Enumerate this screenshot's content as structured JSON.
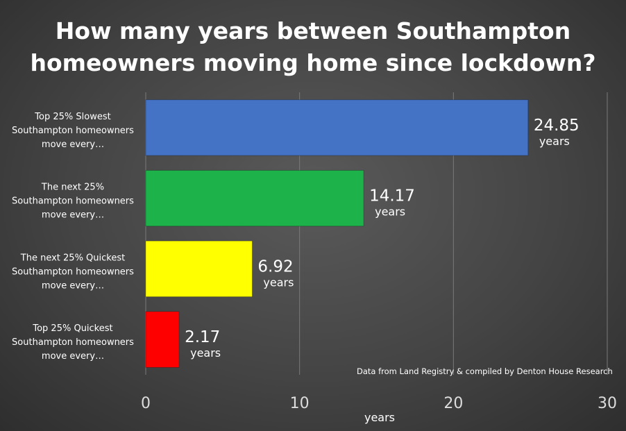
{
  "title_lines": [
    "How many years between Southampton",
    "homeowners moving home since lockdown?"
  ],
  "source_note": "Data from Land Registry & compiled by Denton House Research",
  "chart_data": {
    "type": "bar",
    "orientation": "horizontal",
    "title": "How many years between Southampton homeowners moving home since lockdown?",
    "xlabel": "years",
    "ylabel": "",
    "xlim": [
      0,
      30
    ],
    "ticks": [
      0,
      10,
      20,
      30
    ],
    "grid": true,
    "categories": [
      [
        "Top 25% Slowest",
        "Southampton homeowners",
        "move every…"
      ],
      [
        "The next 25%",
        "Southampton homeowners",
        "move every…"
      ],
      [
        "The next 25% Quickest",
        "Southampton homeowners",
        "move every…"
      ],
      [
        "Top 25% Quickest",
        "Southampton homeowners",
        "move every…"
      ]
    ],
    "values": [
      24.85,
      14.17,
      6.92,
      2.17
    ],
    "value_labels": [
      "24.85",
      "14.17",
      "6.92",
      "2.17"
    ],
    "unit_label": "years",
    "colors": [
      "#4472c4",
      "#1db24a",
      "#ffff00",
      "#ff0000"
    ]
  }
}
